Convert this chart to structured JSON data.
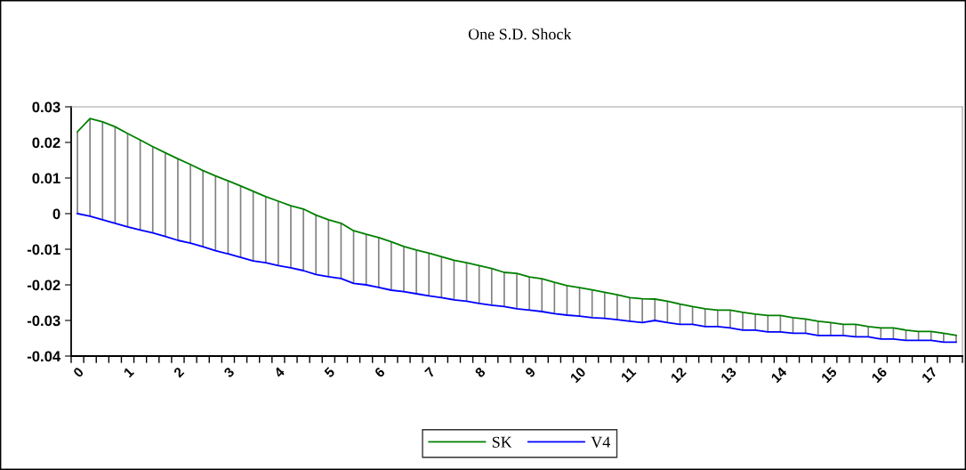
{
  "chart_data": {
    "type": "line",
    "title": "One S.D. Shock",
    "categories": [
      "0",
      null,
      null,
      null,
      "1",
      null,
      null,
      null,
      "2",
      null,
      null,
      null,
      "3",
      null,
      null,
      null,
      "4",
      null,
      null,
      null,
      "5",
      null,
      null,
      null,
      "6",
      null,
      null,
      null,
      "7",
      null,
      null,
      null,
      "8",
      null,
      null,
      null,
      "9",
      null,
      null,
      null,
      "10",
      null,
      null,
      null,
      "11",
      null,
      null,
      null,
      "12",
      null,
      null,
      null,
      "13",
      null,
      null,
      null,
      "14",
      null,
      null,
      null,
      "15",
      null,
      null,
      null,
      "16",
      null,
      null,
      null,
      "17",
      null,
      null
    ],
    "series": [
      {
        "name": "SK",
        "color": "#008000",
        "values": [
          0.023,
          0.0267,
          0.0258,
          0.0244,
          0.0225,
          0.0207,
          0.0188,
          0.0171,
          0.0154,
          0.0138,
          0.0121,
          0.0106,
          0.0092,
          0.0078,
          0.0063,
          0.0048,
          0.0035,
          0.0022,
          0.0013,
          -0.0004,
          -0.0017,
          -0.0027,
          -0.0048,
          -0.0058,
          -0.0067,
          -0.0079,
          -0.0092,
          -0.0102,
          -0.0111,
          -0.0121,
          -0.0131,
          -0.0138,
          -0.0146,
          -0.0154,
          -0.0165,
          -0.0168,
          -0.0178,
          -0.0183,
          -0.0193,
          -0.0202,
          -0.0208,
          -0.0214,
          -0.0221,
          -0.0228,
          -0.0236,
          -0.0239,
          -0.024,
          -0.0246,
          -0.0254,
          -0.0261,
          -0.0267,
          -0.0271,
          -0.0271,
          -0.0277,
          -0.0282,
          -0.0286,
          -0.0286,
          -0.0292,
          -0.0296,
          -0.0302,
          -0.0306,
          -0.0311,
          -0.0311,
          -0.0317,
          -0.0321,
          -0.0321,
          -0.0327,
          -0.0331,
          -0.0331,
          -0.0336,
          -0.0342
        ]
      },
      {
        "name": "V4",
        "color": "#0000ff",
        "values": [
          0.0,
          -0.0007,
          -0.0017,
          -0.0027,
          -0.0037,
          -0.0046,
          -0.0054,
          -0.0064,
          -0.0075,
          -0.0083,
          -0.0093,
          -0.0104,
          -0.0113,
          -0.0123,
          -0.0133,
          -0.0138,
          -0.0146,
          -0.0152,
          -0.016,
          -0.0171,
          -0.0177,
          -0.0182,
          -0.0196,
          -0.02,
          -0.0207,
          -0.0215,
          -0.0219,
          -0.0225,
          -0.0231,
          -0.0236,
          -0.0242,
          -0.0246,
          -0.0252,
          -0.0257,
          -0.0261,
          -0.0267,
          -0.0271,
          -0.0275,
          -0.0281,
          -0.0285,
          -0.0288,
          -0.0292,
          -0.0294,
          -0.0298,
          -0.0302,
          -0.0306,
          -0.03,
          -0.0306,
          -0.0311,
          -0.0311,
          -0.0317,
          -0.0317,
          -0.0321,
          -0.0327,
          -0.0327,
          -0.0332,
          -0.0332,
          -0.0336,
          -0.0336,
          -0.0342,
          -0.0342,
          -0.0342,
          -0.0346,
          -0.0346,
          -0.0352,
          -0.0352,
          -0.0356,
          -0.0356,
          -0.0356,
          -0.0361,
          -0.0361
        ],
        "errors": [
          [
            0.0,
            0.023
          ],
          [
            -0.0007,
            0.0267
          ],
          [
            -0.0017,
            0.0258
          ],
          [
            -0.0027,
            0.0244
          ],
          [
            -0.0037,
            0.0225
          ],
          [
            -0.0046,
            0.0207
          ],
          [
            -0.0054,
            0.0188
          ],
          [
            -0.0064,
            0.0171
          ],
          [
            -0.0075,
            0.0154
          ],
          [
            -0.0083,
            0.0138
          ],
          [
            -0.0093,
            0.0121
          ],
          [
            -0.0104,
            0.0106
          ],
          [
            -0.0113,
            0.0092
          ],
          [
            -0.0123,
            0.0078
          ],
          [
            -0.0133,
            0.0063
          ],
          [
            -0.0138,
            0.0048
          ],
          [
            -0.0146,
            0.0035
          ],
          [
            -0.0152,
            0.0022
          ],
          [
            -0.016,
            0.0013
          ],
          [
            -0.0171,
            -0.0004
          ],
          [
            -0.0177,
            -0.0017
          ],
          [
            -0.0182,
            -0.0027
          ],
          [
            -0.0196,
            -0.0048
          ],
          [
            -0.02,
            -0.0058
          ],
          [
            -0.0207,
            -0.0067
          ],
          [
            -0.0215,
            -0.0079
          ],
          [
            -0.0219,
            -0.0092
          ],
          [
            -0.0225,
            -0.0102
          ],
          [
            -0.0231,
            -0.0111
          ],
          [
            -0.0236,
            -0.0121
          ],
          [
            -0.0242,
            -0.0131
          ],
          [
            -0.0246,
            -0.0138
          ],
          [
            -0.0252,
            -0.0146
          ],
          [
            -0.0257,
            -0.0154
          ],
          [
            -0.0261,
            -0.0165
          ],
          [
            -0.0267,
            -0.0168
          ],
          [
            -0.0271,
            -0.0178
          ],
          [
            -0.0275,
            -0.0183
          ],
          [
            -0.0281,
            -0.0193
          ],
          [
            -0.0285,
            -0.0202
          ],
          [
            -0.0288,
            -0.0208
          ],
          [
            -0.0292,
            -0.0214
          ],
          [
            -0.0294,
            -0.0221
          ],
          [
            -0.0298,
            -0.0228
          ],
          [
            -0.0302,
            -0.0236
          ],
          [
            -0.0306,
            -0.0239
          ],
          [
            -0.03,
            -0.024
          ],
          [
            -0.0306,
            -0.0246
          ],
          [
            -0.0311,
            -0.0254
          ],
          [
            -0.0311,
            -0.0261
          ],
          [
            -0.0317,
            -0.0267
          ],
          [
            -0.0317,
            -0.0271
          ],
          [
            -0.0321,
            -0.0271
          ],
          [
            -0.0327,
            -0.0277
          ],
          [
            -0.0327,
            -0.0282
          ],
          [
            -0.0332,
            -0.0286
          ],
          [
            -0.0332,
            -0.0286
          ],
          [
            -0.0336,
            -0.0292
          ],
          [
            -0.0336,
            -0.0296
          ],
          [
            -0.0342,
            -0.0302
          ],
          [
            -0.0342,
            -0.0306
          ],
          [
            -0.0342,
            -0.0311
          ],
          [
            -0.0346,
            -0.0311
          ],
          [
            -0.0346,
            -0.0317
          ],
          [
            -0.0352,
            -0.0321
          ],
          [
            -0.0352,
            -0.0321
          ],
          [
            -0.0356,
            -0.0327
          ],
          [
            -0.0356,
            -0.0331
          ],
          [
            -0.0356,
            -0.0331
          ],
          [
            -0.0361,
            -0.0336
          ],
          [
            -0.0361,
            -0.0342
          ]
        ]
      }
    ],
    "ylim": [
      -0.04,
      0.03
    ],
    "yticks": [
      -0.04,
      -0.03,
      -0.02,
      -0.01,
      0,
      0.01,
      0.02,
      0.03
    ],
    "grid": false,
    "legend": "bottom",
    "marker": "none",
    "line_style": "solid"
  }
}
